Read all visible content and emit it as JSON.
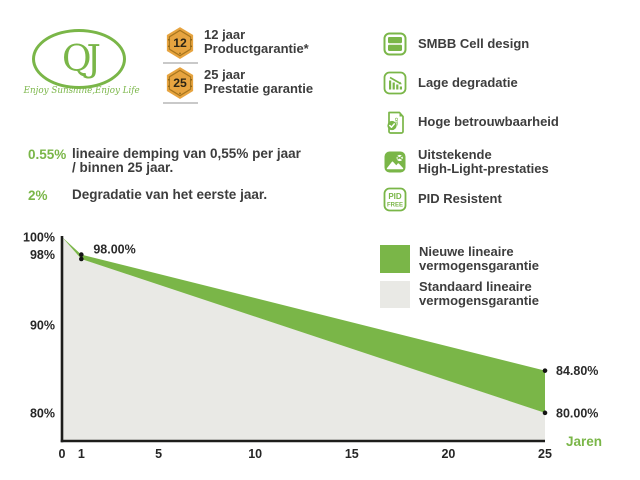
{
  "logo": {
    "monogram": "QJ",
    "tagline": "Enjoy Sunshine,Enjoy Life"
  },
  "warranty_badges": [
    {
      "number": "12",
      "line1": "12 jaar",
      "line2": "Productgarantie*",
      "icon": "hexagon-12-badge-icon"
    },
    {
      "number": "25",
      "line1": "25 jaar",
      "line2": "Prestatie garantie",
      "icon": "hexagon-25-badge-icon"
    }
  ],
  "features": [
    {
      "icon": "solar-cell-icon",
      "label": "SMBB Cell design",
      "label2": ""
    },
    {
      "icon": "degradation-chart-icon",
      "label": "Lage degradatie",
      "label2": ""
    },
    {
      "icon": "certificate-check-icon",
      "label": "Hoge betrouwbaarheid",
      "label2": ""
    },
    {
      "icon": "landscape-sun-icon",
      "label": "Uitstekende",
      "label2": "High-Light-prestaties"
    },
    {
      "icon": "pid-free-icon",
      "label": "PID Resistent",
      "label2": ""
    }
  ],
  "stats": [
    {
      "value": "0.55%",
      "line1": "lineaire demping van 0,55% per jaar",
      "line2": "/ binnen 25 jaar."
    },
    {
      "value": "2%",
      "line1": "Degradatie van het eerste jaar.",
      "line2": ""
    }
  ],
  "colors": {
    "green": "#7ab648",
    "gray_area": "#e9e9e5",
    "gold": "#e7a440",
    "gold_dark": "#a8761d",
    "text": "#3d3d3d",
    "axis": "#1d1d1b"
  },
  "chart_data": {
    "type": "area",
    "title": "",
    "xlabel": "Jaren",
    "ylabel": "",
    "xlim": [
      0,
      25
    ],
    "ylim": [
      76.8,
      100
    ],
    "grid": false,
    "legend_position": "top-right",
    "x": [
      0,
      1,
      25
    ],
    "series": [
      {
        "name": "Nieuwe lineaire vermogensgarantie",
        "color": "#7ab648",
        "values": [
          100,
          98,
          84.8
        ]
      },
      {
        "name": "Standaard lineaire vermogensgarantie",
        "color": "#e9e9e5",
        "values": [
          100,
          97.5,
          80
        ]
      }
    ],
    "legend": [
      {
        "line1": "Nieuwe lineaire",
        "line2": "vermogensgarantie",
        "color": "#7ab648"
      },
      {
        "line1": "Standaard lineaire",
        "line2": "vermogensgarantie",
        "color": "#e9e9e5"
      }
    ],
    "markers": [
      {
        "x": 1,
        "y": 98,
        "label": "98.00%"
      },
      {
        "x": 1,
        "y": 97.5,
        "label": ""
      },
      {
        "x": 25,
        "y": 84.8,
        "label": "84.80%"
      },
      {
        "x": 25,
        "y": 80,
        "label": "80.00%"
      }
    ],
    "yticks": [
      {
        "value": 100,
        "label": "100%"
      },
      {
        "value": 98,
        "label": "98%"
      },
      {
        "value": 90,
        "label": "90%"
      },
      {
        "value": 80,
        "label": "80%"
      }
    ],
    "xticks": [
      {
        "value": 0,
        "label": "0"
      },
      {
        "value": 1,
        "label": "1"
      },
      {
        "value": 5,
        "label": "5"
      },
      {
        "value": 10,
        "label": "10"
      },
      {
        "value": 15,
        "label": "15"
      },
      {
        "value": 20,
        "label": "20"
      },
      {
        "value": 25,
        "label": "25"
      }
    ]
  }
}
